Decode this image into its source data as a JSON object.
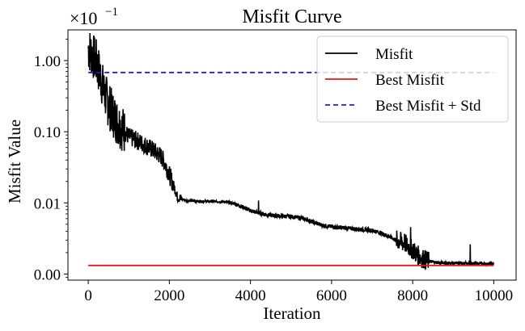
{
  "chart_data": {
    "type": "line",
    "title": "Misfit Curve",
    "xlabel": "Iteration",
    "ylabel": "Misfit Value",
    "y_scale": "log",
    "y_offset_label": {
      "base": "×10",
      "exponent": "−1"
    },
    "xlim": [
      -500,
      10550
    ],
    "ylim": [
      0.00082,
      2.7
    ],
    "x_ticks": [
      0,
      2000,
      4000,
      6000,
      8000,
      10000
    ],
    "x_tick_labels": [
      "0",
      "2000",
      "4000",
      "6000",
      "8000",
      "10000"
    ],
    "y_ticks": [
      0.001,
      0.01,
      0.1,
      1.0
    ],
    "y_tick_labels": [
      "0.00",
      "0.01",
      "0.10",
      "1.00"
    ],
    "grid": false,
    "legend_position": "top-right",
    "series": [
      {
        "name": "Misfit",
        "style": "solid",
        "color": "#000000",
        "x": [
          0,
          100,
          200,
          300,
          400,
          500,
          600,
          700,
          800,
          900,
          1000,
          1200,
          1400,
          1600,
          1800,
          1900,
          2000,
          2100,
          2200,
          2400,
          2600,
          2800,
          3000,
          3200,
          3400,
          3600,
          3800,
          4000,
          4200,
          4400,
          4600,
          4800,
          5000,
          5200,
          5400,
          5600,
          5800,
          6000,
          6200,
          6400,
          6600,
          6800,
          7000,
          7200,
          7400,
          7600,
          7800,
          8000,
          8100,
          8200,
          8300,
          8400,
          8600,
          8800,
          9000,
          9200,
          9400,
          9600,
          9800,
          10000
        ],
        "y": [
          1.5,
          1.2,
          0.95,
          0.6,
          0.35,
          0.24,
          0.18,
          0.14,
          0.12,
          0.1,
          0.085,
          0.075,
          0.065,
          0.055,
          0.045,
          0.035,
          0.025,
          0.018,
          0.012,
          0.0108,
          0.0106,
          0.0105,
          0.0105,
          0.0104,
          0.0103,
          0.0098,
          0.0088,
          0.0078,
          0.0072,
          0.0068,
          0.0066,
          0.0065,
          0.0064,
          0.0062,
          0.0058,
          0.0052,
          0.0048,
          0.0046,
          0.0045,
          0.0044,
          0.0043,
          0.0042,
          0.0041,
          0.0038,
          0.0034,
          0.003,
          0.0027,
          0.0022,
          0.0019,
          0.0017,
          0.0016,
          0.0015,
          0.00145,
          0.00143,
          0.00142,
          0.00142,
          0.00141,
          0.00141,
          0.0014,
          0.0014
        ]
      },
      {
        "name": "Best Misfit",
        "style": "solid",
        "color": "#e31a1c",
        "x": [
          0,
          10000
        ],
        "y": [
          0.00132,
          0.00132
        ]
      },
      {
        "name": "Best Misfit + Std",
        "style": "dashed",
        "color": "#1f1fd0",
        "x": [
          0,
          10000
        ],
        "y": [
          0.68,
          0.68
        ]
      }
    ]
  }
}
